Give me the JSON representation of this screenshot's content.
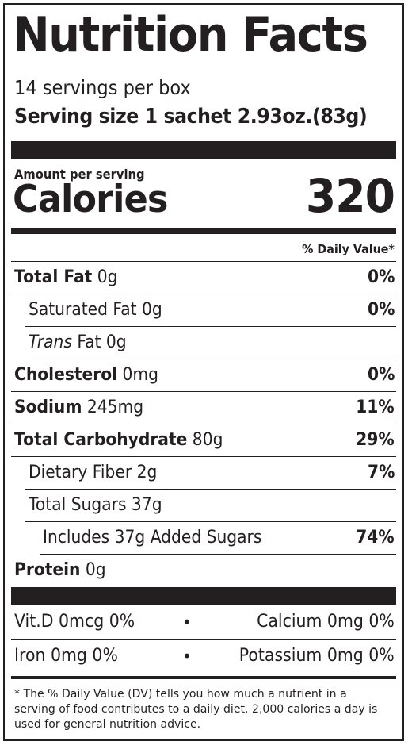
{
  "title": "Nutrition Facts",
  "servings_per_container": "14 servings per box",
  "serving_size": {
    "label": "Serving size",
    "value": "1 sachet 2.93oz.(83g)"
  },
  "amount_per_serving": "Amount per serving",
  "calories": {
    "label": "Calories",
    "value": "320"
  },
  "daily_value_header": "% Daily Value*",
  "nutrients": [
    {
      "name": "Total Fat",
      "amount": "0g",
      "dv": "0%"
    },
    {
      "name": "Saturated Fat",
      "amount": "0g",
      "dv": "0%"
    },
    {
      "name_italic": "Trans",
      "name": "Fat",
      "amount": "0g",
      "dv": ""
    },
    {
      "name": "Cholesterol",
      "amount": "0mg",
      "dv": "0%"
    },
    {
      "name": "Sodium",
      "amount": "245mg",
      "dv": "11%"
    },
    {
      "name": "Total Carbohydrate",
      "amount": "80g",
      "dv": "29%"
    },
    {
      "name": "Dietary Fiber",
      "amount": "2g",
      "dv": "7%"
    },
    {
      "name": "Total Sugars",
      "amount": "37g",
      "dv": ""
    },
    {
      "name": "Includes 37g Added Sugars",
      "amount": "",
      "dv": "74%"
    },
    {
      "name": "Protein",
      "amount": "0g",
      "dv": ""
    }
  ],
  "vitamins": [
    {
      "left": "Vit.D 0mcg 0%",
      "right": "Calcium 0mg 0%"
    },
    {
      "left": "Iron 0mg 0%",
      "right": "Potassium 0mg 0%"
    }
  ],
  "separator": "•",
  "footnote": "* The % Daily Value (DV) tells you how much a nutrient in a serving of food contributes to a daily diet. 2,000 calories a day is used for general nutrition advice."
}
